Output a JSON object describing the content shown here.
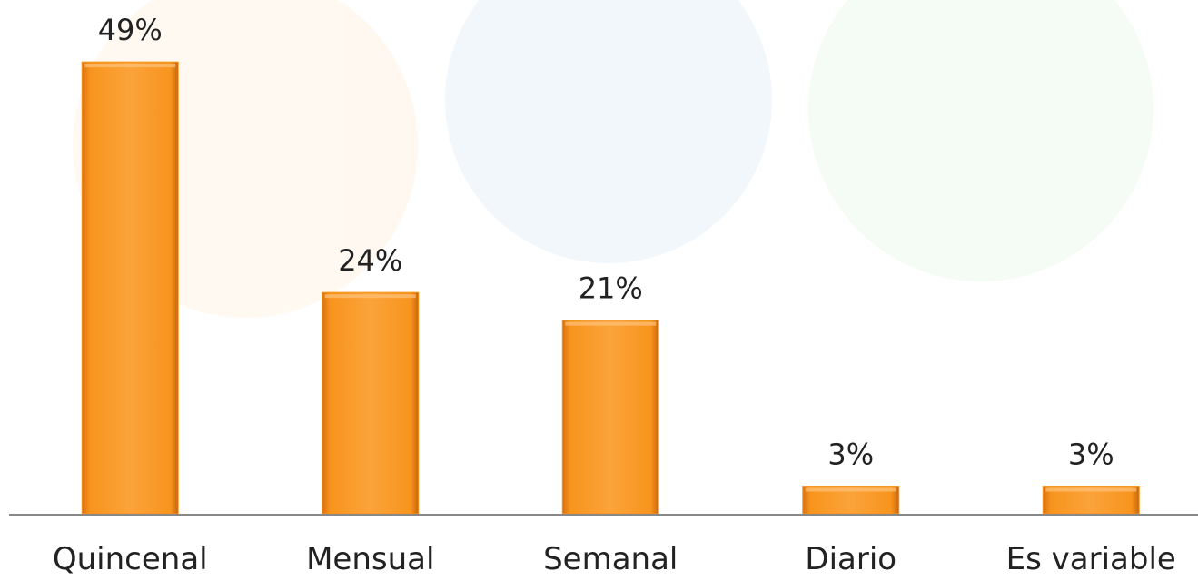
{
  "chart_data": {
    "type": "bar",
    "categories": [
      "Quincenal",
      "Mensual",
      "Semanal",
      "Diario",
      "Es variable"
    ],
    "values": [
      49,
      24,
      21,
      3,
      3
    ],
    "value_labels": [
      "49%",
      "24%",
      "21%",
      "3%",
      "3%"
    ],
    "color": "#f7941d"
  }
}
